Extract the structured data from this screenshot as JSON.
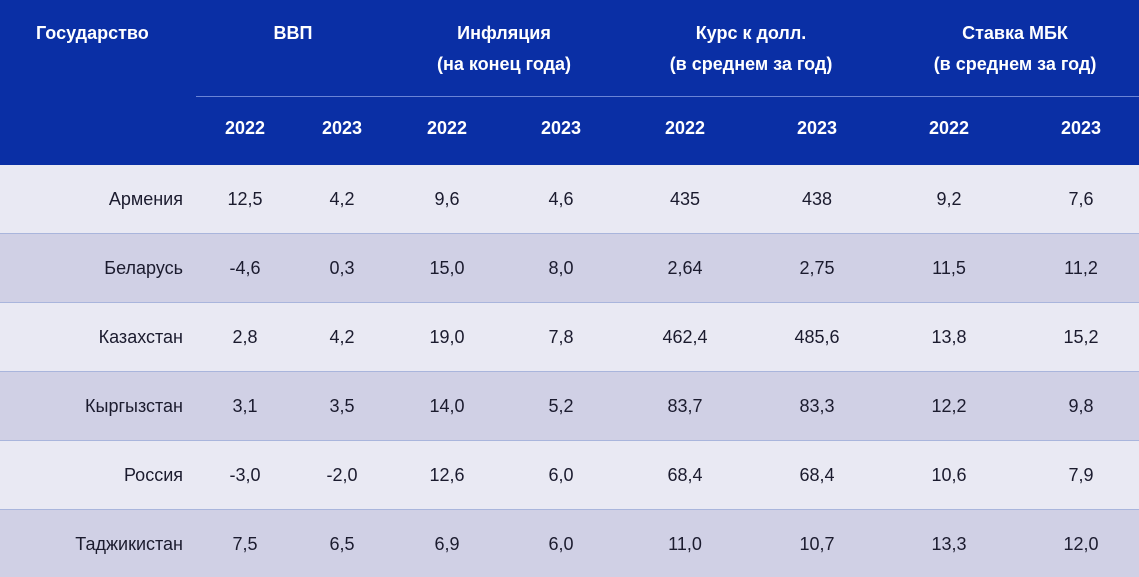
{
  "header": {
    "country_label": "Государство",
    "gdp_label": "ВВП",
    "inflation_label_1": "Инфляция",
    "inflation_label_2": "(на конец года)",
    "rate_label_1": "Курс к долл.",
    "rate_label_2": "(в среднем за год)",
    "mbk_label_1": "Ставка МБК",
    "mbk_label_2": "(в среднем за год)",
    "years": [
      "2022",
      "2023",
      "2022",
      "2023",
      "2022",
      "2023",
      "2022",
      "2023"
    ]
  },
  "colors": {
    "header_bg": "#0a2fa5",
    "row_light": "#e9e9f3",
    "row_dark": "#d0d0e5"
  },
  "rows": [
    {
      "country": "Армения",
      "values": [
        "12,5",
        "4,2",
        "9,6",
        "4,6",
        "435",
        "438",
        "9,2",
        "7,6"
      ]
    },
    {
      "country": "Беларусь",
      "values": [
        "-4,6",
        "0,3",
        "15,0",
        "8,0",
        "2,64",
        "2,75",
        "11,5",
        "11,2"
      ]
    },
    {
      "country": "Казахстан",
      "values": [
        "2,8",
        "4,2",
        "19,0",
        "7,8",
        "462,4",
        "485,6",
        "13,8",
        "15,2"
      ]
    },
    {
      "country": "Кыргызстан",
      "values": [
        "3,1",
        "3,5",
        "14,0",
        "5,2",
        "83,7",
        "83,3",
        "12,2",
        "9,8"
      ]
    },
    {
      "country": "Россия",
      "values": [
        "-3,0",
        "-2,0",
        "12,6",
        "6,0",
        "68,4",
        "68,4",
        "10,6",
        "7,9"
      ]
    },
    {
      "country": "Таджикистан",
      "values": [
        "7,5",
        "6,5",
        "6,9",
        "6,0",
        "11,0",
        "10,7",
        "13,3",
        "12,0"
      ]
    }
  ]
}
